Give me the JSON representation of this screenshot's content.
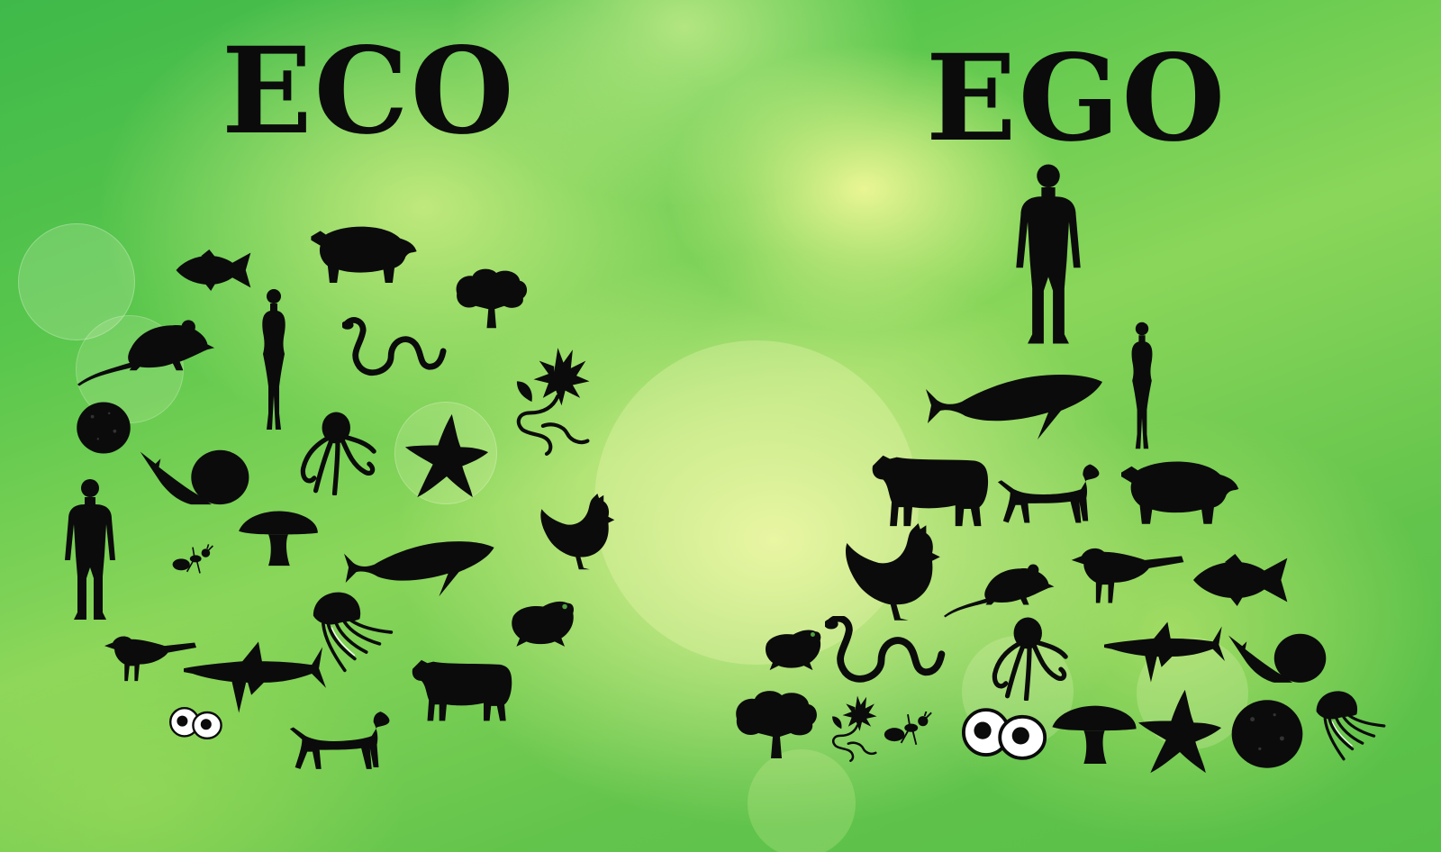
{
  "eco": {
    "title": "ECO",
    "arrangement": "circle"
  },
  "ego": {
    "title": "EGO",
    "arrangement": "pyramid"
  },
  "colors": {
    "silhouette": "#0b0b0b",
    "background": "#5cc24a",
    "highlight": "#eef69a"
  },
  "icons": [
    "fish-icon",
    "pig-icon",
    "tree-icon",
    "rat-icon",
    "woman-icon",
    "snake-icon",
    "flower-icon",
    "stone-icon",
    "octopus-icon",
    "starfish-icon",
    "snail-icon",
    "man-icon",
    "mushroom-icon",
    "hen-icon",
    "ant-icon",
    "whale-icon",
    "jellyfish-icon",
    "frog-icon",
    "bird-icon",
    "shark-icon",
    "cow-icon",
    "eggs-icon",
    "dog-icon"
  ]
}
